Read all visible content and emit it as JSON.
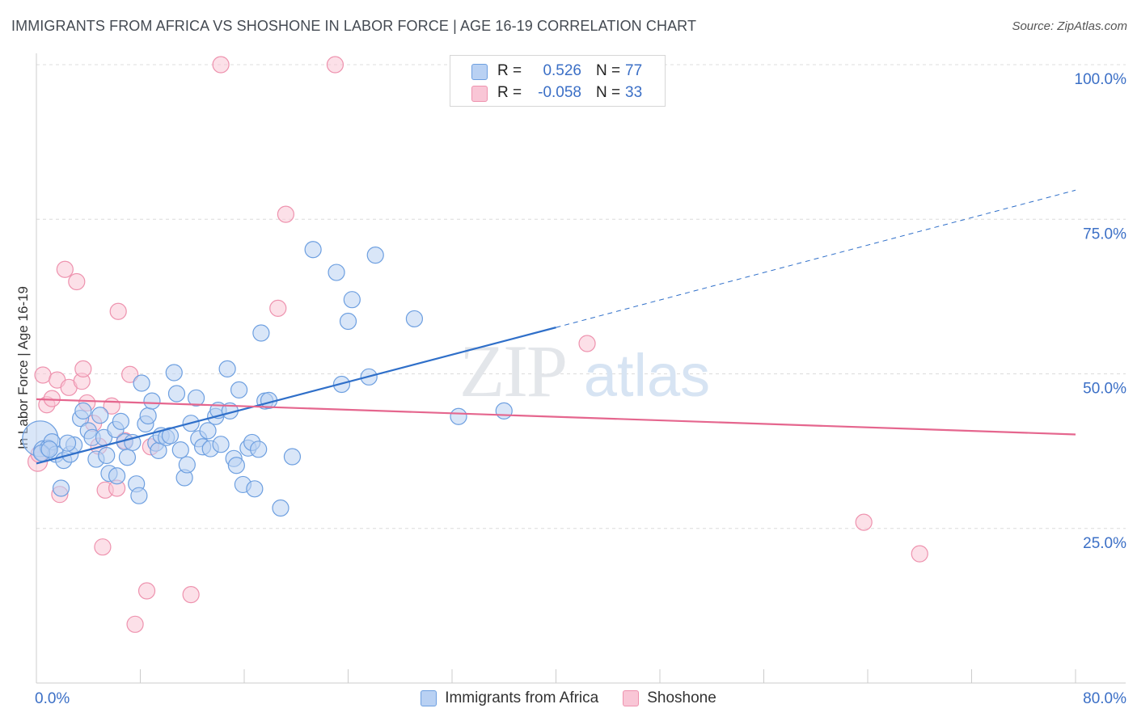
{
  "title": "IMMIGRANTS FROM AFRICA VS SHOSHONE IN LABOR FORCE | AGE 16-19 CORRELATION CHART",
  "source": "Source: ZipAtlas.com",
  "watermark": {
    "zip": "ZIP",
    "atlas": "atlas"
  },
  "stats": [
    {
      "r_label": "R =",
      "r_value": "0.526",
      "n_label": "N =",
      "n_value": "77",
      "fill": "#b9d1f3",
      "stroke": "#6d9fe0"
    },
    {
      "r_label": "R =",
      "r_value": "-0.058",
      "n_label": "N =",
      "n_value": "33",
      "fill": "#f9c6d6",
      "stroke": "#ee92ae"
    }
  ],
  "legend": [
    {
      "label": "Immigrants from Africa",
      "fill": "#b9d1f3",
      "stroke": "#6d9fe0"
    },
    {
      "label": "Shoshone",
      "fill": "#f9c6d6",
      "stroke": "#ee92ae"
    }
  ],
  "chart_data": {
    "type": "scatter",
    "ylabel": "In Labor Force | Age 16-19",
    "xlim": [
      0,
      80
    ],
    "ylim": [
      0,
      100
    ],
    "x_tick_labels": [
      {
        "value": 0,
        "label": "0.0%"
      },
      {
        "value": 80,
        "label": "80.0%"
      }
    ],
    "x_minor_ticks": [
      0,
      8,
      16,
      24,
      32,
      40,
      48,
      56,
      64,
      72,
      80
    ],
    "y_ticks": [
      {
        "value": 25,
        "label": "25.0%"
      },
      {
        "value": 50,
        "label": "50.0%"
      },
      {
        "value": 75,
        "label": "75.0%"
      },
      {
        "value": 100,
        "label": "100.0%"
      }
    ],
    "grid": "horizontal dashed",
    "series": [
      {
        "name": "Immigrants from Africa",
        "color": "#6d9fe0",
        "fill": "#b9d1f3",
        "line_color": "#2f6fc9",
        "trend": {
          "x0": 0,
          "y0": 35.5,
          "x1": 40,
          "y1": 57.5,
          "x_ext": 80,
          "y_ext": 79.7
        },
        "points": [
          [
            0.3,
            39.5,
            22
          ],
          [
            0.6,
            37.5,
            13
          ],
          [
            0.9,
            38,
            10
          ],
          [
            1.2,
            39,
            10
          ],
          [
            1.5,
            37,
            10
          ],
          [
            1.9,
            31.5,
            10
          ],
          [
            2.1,
            36,
            10
          ],
          [
            2.6,
            37,
            10
          ],
          [
            2.9,
            38.5,
            10
          ],
          [
            3.4,
            42.8,
            10
          ],
          [
            3.6,
            44,
            10
          ],
          [
            4,
            40.8,
            10
          ],
          [
            4.3,
            39.7,
            10
          ],
          [
            4.6,
            36.2,
            10
          ],
          [
            4.9,
            43.3,
            10
          ],
          [
            5.2,
            39.7,
            10
          ],
          [
            5.4,
            36.8,
            10
          ],
          [
            5.6,
            33.9,
            10
          ],
          [
            6.1,
            41,
            10
          ],
          [
            6.2,
            33.5,
            10
          ],
          [
            6.5,
            42.3,
            10
          ],
          [
            6.8,
            39,
            10
          ],
          [
            7,
            36.5,
            10
          ],
          [
            7.4,
            38.9,
            10
          ],
          [
            7.7,
            32.2,
            10
          ],
          [
            7.9,
            30.3,
            10
          ],
          [
            8.1,
            48.5,
            10
          ],
          [
            8.4,
            41.9,
            10
          ],
          [
            8.6,
            43.2,
            10
          ],
          [
            8.9,
            45.6,
            10
          ],
          [
            9.2,
            38.8,
            10
          ],
          [
            9.4,
            37.6,
            10
          ],
          [
            9.6,
            40,
            10
          ],
          [
            10,
            39.7,
            10
          ],
          [
            10.3,
            40,
            10
          ],
          [
            10.6,
            50.2,
            10
          ],
          [
            10.8,
            46.8,
            10
          ],
          [
            11.1,
            37.7,
            10
          ],
          [
            11.4,
            33.2,
            10
          ],
          [
            11.6,
            35.3,
            10
          ],
          [
            11.9,
            42,
            10
          ],
          [
            12.3,
            46.1,
            10
          ],
          [
            12.5,
            39.5,
            10
          ],
          [
            12.8,
            38.2,
            10
          ],
          [
            13.2,
            40.8,
            10
          ],
          [
            13.4,
            37.9,
            10
          ],
          [
            13.8,
            43.1,
            10
          ],
          [
            14,
            44.1,
            10
          ],
          [
            14.2,
            38.6,
            10
          ],
          [
            14.7,
            50.8,
            10
          ],
          [
            14.9,
            44,
            10
          ],
          [
            15.2,
            36.3,
            10
          ],
          [
            15.4,
            35.2,
            10
          ],
          [
            15.6,
            47.4,
            10
          ],
          [
            15.9,
            32.1,
            10
          ],
          [
            16.3,
            38,
            10
          ],
          [
            16.6,
            38.9,
            10
          ],
          [
            16.8,
            31.4,
            10
          ],
          [
            17.1,
            37.8,
            10
          ],
          [
            17.3,
            56.6,
            10
          ],
          [
            17.6,
            45.6,
            10
          ],
          [
            17.9,
            45.7,
            10
          ],
          [
            18.8,
            28.3,
            10
          ],
          [
            19.7,
            36.6,
            10
          ],
          [
            21.3,
            70.1,
            10
          ],
          [
            23.1,
            66.4,
            10
          ],
          [
            23.5,
            48.3,
            10
          ],
          [
            24,
            58.5,
            10
          ],
          [
            24.3,
            62,
            10
          ],
          [
            25.6,
            49.5,
            10
          ],
          [
            26.1,
            69.2,
            10
          ],
          [
            29.1,
            58.9,
            10
          ],
          [
            32.5,
            43.1,
            10
          ],
          [
            36,
            44,
            10
          ],
          [
            0.4,
            37.2,
            10
          ],
          [
            1.0,
            37.8,
            10
          ],
          [
            2.4,
            38.8,
            10
          ]
        ]
      },
      {
        "name": "Shoshone",
        "color": "#ee92ae",
        "fill": "#f9c6d6",
        "line_color": "#e5668e",
        "trend": {
          "x0": 0,
          "y0": 45.9,
          "x1": 80,
          "y1": 40.2
        },
        "points": [
          [
            0.1,
            35.8,
            12
          ],
          [
            0.5,
            49.8,
            10
          ],
          [
            0.8,
            45,
            10
          ],
          [
            1.2,
            46,
            10
          ],
          [
            1.6,
            49,
            10
          ],
          [
            1.8,
            30.5,
            10
          ],
          [
            2.2,
            66.9,
            10
          ],
          [
            2.5,
            47.8,
            10
          ],
          [
            3.1,
            64.9,
            10
          ],
          [
            3.5,
            48.8,
            10
          ],
          [
            3.6,
            50.8,
            10
          ],
          [
            3.9,
            45.3,
            10
          ],
          [
            4.4,
            42,
            10
          ],
          [
            4.8,
            38.3,
            10
          ],
          [
            5.1,
            22,
            10
          ],
          [
            5.3,
            31.2,
            10
          ],
          [
            5.8,
            44.8,
            10
          ],
          [
            6.2,
            31.5,
            10
          ],
          [
            6.3,
            60.1,
            10
          ],
          [
            6.8,
            39.2,
            10
          ],
          [
            7.2,
            49.9,
            10
          ],
          [
            7.6,
            9.5,
            10
          ],
          [
            8.5,
            14.9,
            10
          ],
          [
            8.8,
            38.2,
            10
          ],
          [
            11.9,
            14.3,
            10
          ],
          [
            14.2,
            100,
            10
          ],
          [
            18.6,
            60.6,
            10
          ],
          [
            19.2,
            75.8,
            10
          ],
          [
            23,
            100,
            10
          ],
          [
            42.4,
            54.9,
            10
          ],
          [
            63.7,
            26,
            10
          ],
          [
            68,
            20.9,
            10
          ],
          [
            0.2,
            37,
            10
          ]
        ]
      }
    ]
  }
}
